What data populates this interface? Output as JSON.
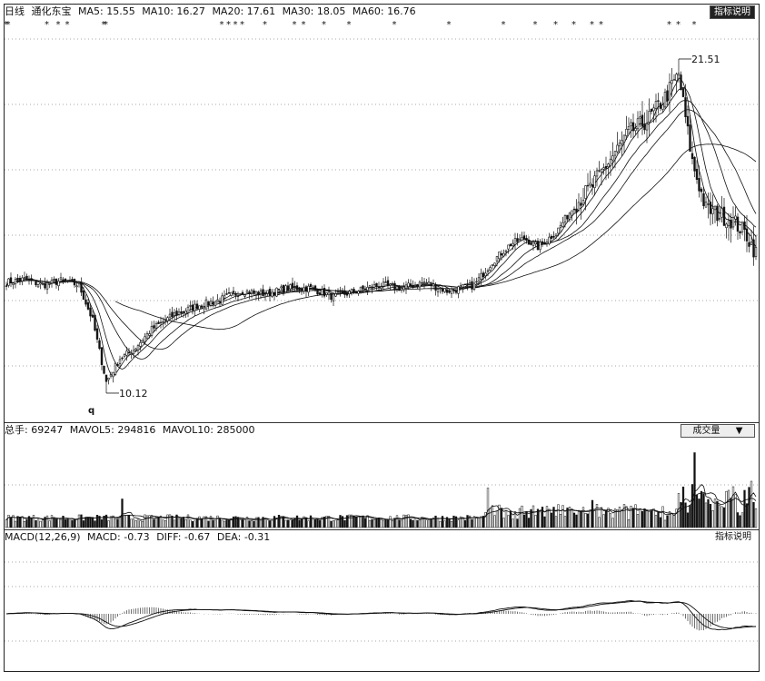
{
  "price_panel": {
    "label_prefix": "日线",
    "stock_name": "通化东宝",
    "ma_labels": [
      "MA5: 15.55",
      "MA10: 16.27",
      "MA20: 17.61",
      "MA30: 18.05",
      "MA60: 16.76"
    ],
    "button_label": "指标说明",
    "star_marker": "*",
    "high_annotation": "21.51",
    "low_annotation": "10.12",
    "low_marker": "q"
  },
  "volume_panel": {
    "header_labels": [
      "总手: 69247",
      "MAVOL5: 294816",
      "MAVOL10: 285000"
    ],
    "selector_label": "成交量",
    "selector_arrow": "▼"
  },
  "macd_panel": {
    "header_labels": [
      "MACD(12,26,9)",
      "MACD: -0.73",
      "DIFF: -0.67",
      "DEA: -0.31"
    ],
    "button_label": "指标说明"
  },
  "chart_data": {
    "type": "candlestick",
    "note_values_estimated": true,
    "y_range": [
      9.5,
      22.5
    ],
    "price_series_anchor_points": [
      [
        0,
        13.9
      ],
      [
        8,
        14.0
      ],
      [
        16,
        13.8
      ],
      [
        24,
        13.95
      ],
      [
        32,
        13.8
      ],
      [
        38,
        12.6
      ],
      [
        44,
        10.5
      ],
      [
        50,
        11.3
      ],
      [
        56,
        11.6
      ],
      [
        64,
        12.3
      ],
      [
        74,
        12.8
      ],
      [
        84,
        13.1
      ],
      [
        94,
        13.3
      ],
      [
        104,
        13.6
      ],
      [
        114,
        13.5
      ],
      [
        124,
        13.7
      ],
      [
        134,
        13.7
      ],
      [
        144,
        13.4
      ],
      [
        154,
        13.6
      ],
      [
        164,
        13.8
      ],
      [
        174,
        13.7
      ],
      [
        184,
        13.9
      ],
      [
        194,
        13.6
      ],
      [
        206,
        13.8
      ],
      [
        214,
        14.6
      ],
      [
        222,
        15.2
      ],
      [
        228,
        15.4
      ],
      [
        234,
        15.1
      ],
      [
        242,
        15.6
      ],
      [
        250,
        16.5
      ],
      [
        258,
        17.2
      ],
      [
        266,
        18.1
      ],
      [
        274,
        19.0
      ],
      [
        282,
        19.4
      ],
      [
        290,
        20.2
      ],
      [
        296,
        21.0
      ],
      [
        302,
        18.0
      ],
      [
        308,
        16.4
      ],
      [
        314,
        16.2
      ],
      [
        320,
        16.0
      ],
      [
        326,
        15.5
      ],
      [
        330,
        14.9
      ]
    ],
    "high": 21.51,
    "low": 10.12,
    "star_positions": [
      0,
      1,
      18,
      23,
      27,
      43,
      44,
      95,
      98,
      101,
      104,
      114,
      127,
      131,
      140,
      151,
      171,
      195,
      219,
      233,
      242,
      250,
      258,
      262,
      292,
      296,
      303
    ],
    "volume_spikes": [
      [
        51,
        2.1
      ],
      [
        212,
        2.9
      ],
      [
        232,
        1.6
      ],
      [
        258,
        2.0
      ],
      [
        303,
        5.5
      ],
      [
        307,
        2.5
      ],
      [
        320,
        3.0
      ],
      [
        328,
        3.4
      ]
    ],
    "macd": {
      "diff_last": -0.67,
      "dea_last": -0.31,
      "macd_last": -0.73
    }
  }
}
